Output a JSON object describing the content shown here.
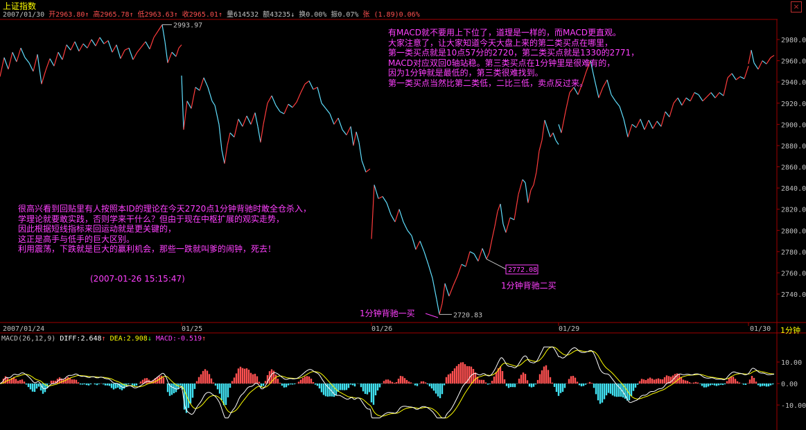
{
  "header": {
    "title": "上证指数",
    "quote": {
      "date": "2007/01/30",
      "open_label": "开",
      "open": "2963.80",
      "high_label": "高",
      "high": "2965.78",
      "low_label": "低",
      "low": "2963.63",
      "close_label": "收",
      "close": "2965.01",
      "volume_label": "量",
      "volume": "614532",
      "amount_label": "额",
      "amount": "43235",
      "turnover_label": "换",
      "turnover": "0.00%",
      "amplitude_label": "振",
      "amplitude": "0.07%",
      "change_label": "张",
      "change": "(1.89)",
      "change_pct": "0.06%"
    },
    "close_button": "×"
  },
  "timeframe": "1分钟",
  "annotations": {
    "top_note": [
      "有MACD就不要用上下位了，道理是一样的，而MACD更直观。",
      "大家注意了，让大家知道今天大盘上来的第二类买点在哪里，",
      "第一类买点就是10点57分的2720，第二类买点就是1330的2771，",
      "MACD对应双回0轴站稳。第三类买点在1分钟里是很难有的，",
      "因为1分钟就是最低的，第三类很难找到。",
      "第一类买点当然比第二类低，二比三低，卖点反过来。"
    ],
    "left_note": [
      "很高兴看到回贴里有人按照本ID的理论在今天2720点1分钟背驰时敢全仓杀入，",
      "学理论就要敢实践，否则学来干什么？但由于现在中枢扩展的观实走势，",
      "因此根据短线指标来回运动就是更关键的，",
      "这正是高手与低手的巨大区别。",
      "利用震荡，下跌就是巨大的赢利机会，那些一跌就叫爹的闹钟，死去！"
    ],
    "timestamp": "(2007-01-26 15:15:47)",
    "buy1_label": "1分钟背驰一买",
    "buy2_label": "1分钟背驰二买",
    "peak_label": "2993.97",
    "low_label": "2720.83",
    "buy2_box": "2772.08"
  },
  "chart_data": [
    {
      "type": "line",
      "name": "上证指数 1分钟",
      "x_tick_labels": [
        "2007/01/24",
        "01/25",
        "01/26",
        "01/29",
        "01/30"
      ],
      "y_ticks": [
        2740,
        2760,
        2780,
        2800,
        2820,
        2840,
        2860,
        2880,
        2900,
        2920,
        2940,
        2960,
        2980
      ],
      "ylim": [
        2720,
        2995
      ],
      "sessions": [
        {
          "date": "2007/01/24",
          "points": [
            [
              0,
              2945
            ],
            [
              6,
              2963
            ],
            [
              12,
              2952
            ],
            [
              18,
              2968
            ],
            [
              24,
              2959
            ],
            [
              30,
              2972
            ],
            [
              36,
              2963
            ],
            [
              42,
              2958
            ],
            [
              48,
              2950
            ],
            [
              54,
              2966
            ],
            [
              60,
              2938
            ],
            [
              66,
              2951
            ],
            [
              72,
              2962
            ],
            [
              78,
              2955
            ],
            [
              84,
              2968
            ],
            [
              90,
              2961
            ],
            [
              96,
              2975
            ],
            [
              102,
              2970
            ],
            [
              108,
              2978
            ],
            [
              114,
              2969
            ],
            [
              120,
              2976
            ],
            [
              126,
              2972
            ],
            [
              132,
              2980
            ],
            [
              138,
              2974
            ],
            [
              144,
              2982
            ],
            [
              150,
              2976
            ],
            [
              156,
              2979
            ],
            [
              162,
              2968
            ],
            [
              168,
              2975
            ],
            [
              174,
              2962
            ],
            [
              180,
              2970
            ],
            [
              186,
              2972
            ],
            [
              192,
              2961
            ],
            [
              198,
              2968
            ],
            [
              204,
              2973
            ],
            [
              210,
              2978
            ],
            [
              216,
              2971
            ],
            [
              222,
              2982
            ],
            [
              228,
              2988
            ],
            [
              234,
              2993.97
            ],
            [
              238,
              2978
            ],
            [
              242,
              2958
            ],
            [
              248,
              2968
            ],
            [
              254,
              2964
            ],
            [
              258,
              2972
            ],
            [
              262,
              2975
            ]
          ]
        },
        {
          "date": "01/25",
          "points": [
            [
              262,
              2946
            ],
            [
              265,
              2895
            ],
            [
              270,
              2922
            ],
            [
              276,
              2915
            ],
            [
              282,
              2935
            ],
            [
              288,
              2932
            ],
            [
              294,
              2944
            ],
            [
              300,
              2935
            ],
            [
              306,
              2922
            ],
            [
              310,
              2918
            ],
            [
              316,
              2900
            ],
            [
              320,
              2876
            ],
            [
              324,
              2863
            ],
            [
              328,
              2880
            ],
            [
              332,
              2892
            ],
            [
              338,
              2888
            ],
            [
              344,
              2905
            ],
            [
              350,
              2898
            ],
            [
              356,
              2908
            ],
            [
              362,
              2900
            ],
            [
              368,
              2911
            ],
            [
              372,
              2898
            ],
            [
              376,
              2883
            ],
            [
              380,
              2900
            ],
            [
              386,
              2920
            ],
            [
              392,
              2927
            ],
            [
              398,
              2918
            ],
            [
              404,
              2912
            ],
            [
              410,
              2910
            ],
            [
              416,
              2919
            ],
            [
              422,
              2916
            ],
            [
              428,
              2921
            ],
            [
              434,
              2930
            ],
            [
              440,
              2938
            ],
            [
              446,
              2941
            ],
            [
              452,
              2933
            ],
            [
              458,
              2935
            ],
            [
              464,
              2920
            ],
            [
              470,
              2915
            ],
            [
              476,
              2910
            ],
            [
              482,
              2900
            ],
            [
              488,
              2906
            ],
            [
              494,
              2895
            ],
            [
              500,
              2890
            ],
            [
              506,
              2898
            ],
            [
              510,
              2880
            ],
            [
              514,
              2893
            ],
            [
              518,
              2883
            ],
            [
              522,
              2866
            ],
            [
              528,
              2855
            ],
            [
              534,
              2858
            ]
          ]
        },
        {
          "date": "01/26",
          "points": [
            [
              536,
              2792
            ],
            [
              540,
              2843
            ],
            [
              546,
              2830
            ],
            [
              552,
              2832
            ],
            [
              558,
              2826
            ],
            [
              564,
              2815
            ],
            [
              570,
              2808
            ],
            [
              576,
              2820
            ],
            [
              582,
              2808
            ],
            [
              588,
              2800
            ],
            [
              594,
              2795
            ],
            [
              600,
              2782
            ],
            [
              606,
              2790
            ],
            [
              612,
              2780
            ],
            [
              618,
              2768
            ],
            [
              624,
              2755
            ],
            [
              630,
              2735
            ],
            [
              634,
              2720.83
            ],
            [
              638,
              2731
            ],
            [
              642,
              2750
            ],
            [
              648,
              2738
            ],
            [
              654,
              2748
            ],
            [
              660,
              2757
            ],
            [
              666,
              2768
            ],
            [
              672,
              2766
            ],
            [
              678,
              2780
            ],
            [
              684,
              2778
            ],
            [
              690,
              2771
            ],
            [
              696,
              2783
            ],
            [
              702,
              2773
            ],
            [
              706,
              2779
            ],
            [
              710,
              2792
            ],
            [
              714,
              2804
            ],
            [
              718,
              2818
            ],
            [
              722,
              2825
            ],
            [
              726,
              2806
            ],
            [
              730,
              2798
            ],
            [
              736,
              2812
            ],
            [
              742,
              2810
            ],
            [
              748,
              2834
            ],
            [
              754,
              2848
            ],
            [
              758,
              2845
            ],
            [
              762,
              2826
            ],
            [
              766,
              2838
            ],
            [
              770,
              2843
            ],
            [
              774,
              2855
            ],
            [
              778,
              2875
            ],
            [
              782,
              2885
            ],
            [
              786,
              2904
            ],
            [
              790,
              2896
            ],
            [
              794,
              2888
            ],
            [
              798,
              2892
            ],
            [
              802,
              2885
            ],
            [
              806,
              2881
            ]
          ]
        },
        {
          "date": "01/29",
          "points": [
            [
              806,
              2900
            ],
            [
              810,
              2892
            ],
            [
              816,
              2912
            ],
            [
              822,
              2930
            ],
            [
              828,
              2935
            ],
            [
              834,
              2928
            ],
            [
              840,
              2938
            ],
            [
              846,
              2950
            ],
            [
              852,
              2960
            ],
            [
              858,
              2942
            ],
            [
              864,
              2925
            ],
            [
              870,
              2935
            ],
            [
              876,
              2942
            ],
            [
              882,
              2928
            ],
            [
              888,
              2922
            ],
            [
              894,
              2917
            ],
            [
              900,
              2905
            ],
            [
              906,
              2888
            ],
            [
              912,
              2900
            ],
            [
              918,
              2897
            ],
            [
              924,
              2905
            ],
            [
              930,
              2895
            ],
            [
              936,
              2904
            ],
            [
              942,
              2896
            ],
            [
              948,
              2903
            ],
            [
              954,
              2898
            ],
            [
              960,
              2912
            ],
            [
              966,
              2907
            ],
            [
              972,
              2920
            ],
            [
              978,
              2925
            ],
            [
              984,
              2918
            ],
            [
              990,
              2925
            ],
            [
              996,
              2922
            ],
            [
              1002,
              2930
            ],
            [
              1008,
              2928
            ],
            [
              1014,
              2922
            ],
            [
              1020,
              2926
            ],
            [
              1026,
              2930
            ],
            [
              1032,
              2925
            ],
            [
              1038,
              2930
            ],
            [
              1044,
              2927
            ],
            [
              1050,
              2944
            ],
            [
              1056,
              2948
            ],
            [
              1062,
              2942
            ],
            [
              1068,
              2945
            ],
            [
              1074,
              2943
            ],
            [
              1080,
              2955
            ]
          ]
        },
        {
          "date": "01/30",
          "points": [
            [
              1080,
              2957
            ],
            [
              1084,
              2970
            ],
            [
              1088,
              2958
            ],
            [
              1094,
              2952
            ],
            [
              1100,
              2960
            ],
            [
              1106,
              2957
            ],
            [
              1112,
              2963
            ],
            [
              1117,
              2965.01
            ]
          ]
        }
      ]
    },
    {
      "type": "bar",
      "name": "MACD",
      "params": "MACD(26,12,9)",
      "diff_label": "DIFF",
      "diff_value": "2.648",
      "dea_label": "DEA",
      "dea_value": "2.908",
      "macd_label": "MACD",
      "macd_value": "-0.519",
      "y_ticks": [
        10.0,
        0.0,
        -10.0
      ],
      "y_tick_labels": [
        "10.00",
        "0.00",
        "-10.00"
      ],
      "ylim": [
        -17,
        18
      ]
    }
  ]
}
